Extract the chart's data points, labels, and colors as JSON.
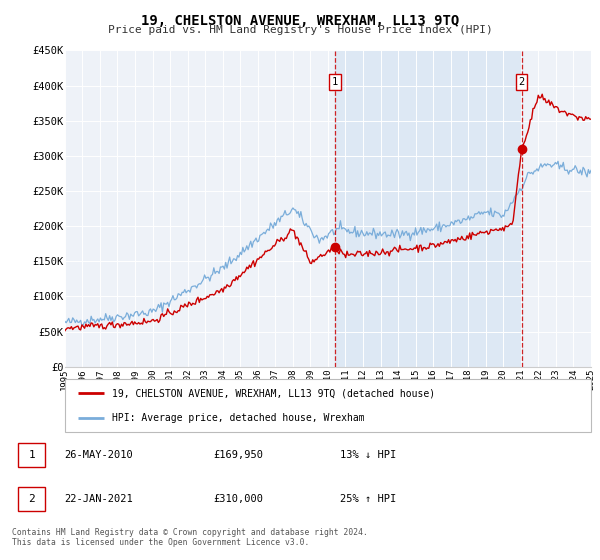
{
  "title": "19, CHELSTON AVENUE, WREXHAM, LL13 9TQ",
  "subtitle": "Price paid vs. HM Land Registry's House Price Index (HPI)",
  "red_label": "19, CHELSTON AVENUE, WREXHAM, LL13 9TQ (detached house)",
  "blue_label": "HPI: Average price, detached house, Wrexham",
  "sale1_date": "26-MAY-2010",
  "sale1_price": "£169,950",
  "sale1_hpi": "13% ↓ HPI",
  "sale1_year": 2010.4,
  "sale1_value": 169950,
  "sale2_date": "22-JAN-2021",
  "sale2_price": "£310,000",
  "sale2_hpi": "25% ↑ HPI",
  "sale2_year": 2021.05,
  "sale2_value": 310000,
  "ylim_max": 450000,
  "ylim_min": 0,
  "xlim_min": 1995,
  "xlim_max": 2025,
  "footnote1": "Contains HM Land Registry data © Crown copyright and database right 2024.",
  "footnote2": "This data is licensed under the Open Government Licence v3.0.",
  "background_color": "#eef2f8",
  "red_color": "#cc0000",
  "blue_color": "#7aadda",
  "shaded_color": "#dde8f4",
  "grid_color": "#ffffff",
  "border_color": "#bbbbbb"
}
